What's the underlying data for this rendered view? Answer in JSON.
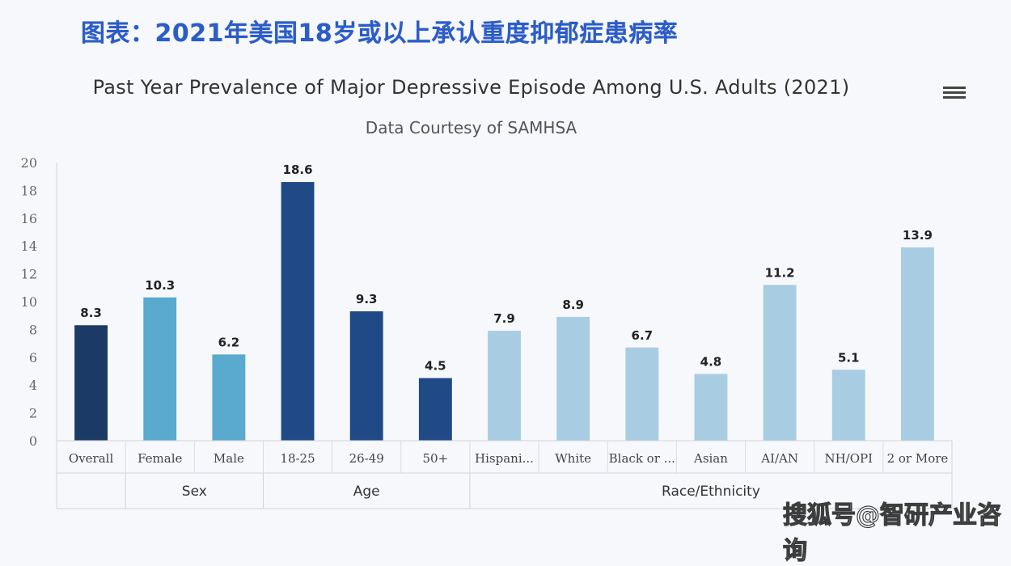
{
  "header": {
    "cn_title": "图表：2021年美国18岁或以上承认重度抑郁症患病率"
  },
  "watermark": "搜狐号@智研产业咨询",
  "menu_icon": "hamburger-menu-icon",
  "chart_data": {
    "type": "bar",
    "title": "Past Year Prevalence of Major Depressive Episode Among U.S. Adults (2021)",
    "subtitle": "Data Courtesy of SAMHSA",
    "xlabel": "",
    "ylabel": "",
    "ylim": [
      0,
      20
    ],
    "yticks": [
      0,
      2,
      4,
      6,
      8,
      10,
      12,
      14,
      16,
      18,
      20
    ],
    "grid": false,
    "legend": "none",
    "categories": [
      "Overall",
      "Female",
      "Male",
      "18-25",
      "26-49",
      "50+",
      "Hispani...",
      "White",
      "Black or ...",
      "Asian",
      "AI/AN",
      "NH/OPI",
      "2 or More"
    ],
    "values": [
      8.3,
      10.3,
      6.2,
      18.6,
      9.3,
      4.5,
      7.9,
      8.9,
      6.7,
      4.8,
      11.2,
      5.1,
      13.9
    ],
    "data_labels": [
      "8.3",
      "10.3",
      "6.2",
      "18.6",
      "9.3",
      "4.5",
      "7.9",
      "8.9",
      "6.7",
      "4.8",
      "11.2",
      "5.1",
      "13.9"
    ],
    "groups": [
      {
        "name": "",
        "start": 0,
        "count": 1,
        "color": "#1c3a66"
      },
      {
        "name": "Sex",
        "start": 1,
        "count": 2,
        "color": "#5aa9cf"
      },
      {
        "name": "Age",
        "start": 3,
        "count": 3,
        "color": "#1f4a85"
      },
      {
        "name": "Race/Ethnicity",
        "start": 6,
        "count": 7,
        "color": "#a8cde2"
      }
    ]
  }
}
